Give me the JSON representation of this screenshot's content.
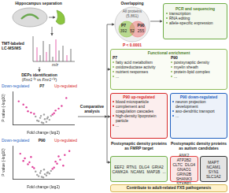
{
  "left": {
    "sample": "Hippocampus separation",
    "method": [
      "TMT-labeled",
      "LC-MS/MS"
    ],
    "spectrum_axis": "m/z",
    "analysis": "DEPs identification",
    "comparison": [
      {
        "text": "(",
        "style": "plain"
      },
      {
        "text": "Fmr1",
        "style": "italic"
      },
      {
        "text": "-/y",
        "style": "sup"
      },
      {
        "text": " vs ",
        "style": "plain"
      },
      {
        "text": "Fmr1",
        "style": "italic"
      },
      {
        "text": "+/y",
        "style": "sup"
      },
      {
        "text": ")",
        "style": "plain"
      }
    ]
  },
  "chart_data": [
    {
      "type": "scatter",
      "title": "P7",
      "annotations": [
        "Down-regulated",
        "Up-regulated"
      ],
      "x_label": "Fold change (log2)",
      "y_label": "P value (-log10)",
      "xlim": [
        -2,
        2
      ],
      "ylim": [
        0,
        5
      ],
      "tick_labels": false,
      "grid": false,
      "series": [
        {
          "color": "#a0a0a0",
          "x": [
            -0.3,
            -0.2,
            -0.1,
            0,
            0.1,
            0.2,
            0.3,
            -0.4,
            0.4,
            0.05,
            -0.15,
            0.25,
            -0.5,
            0.5
          ],
          "values": [
            0.5,
            1,
            0.3,
            0.2,
            0.8,
            0.4,
            1.1,
            0.6,
            0.7,
            1.5,
            1.3,
            0.9,
            1.2,
            1.3
          ]
        },
        {
          "color": "#e0409a",
          "x": [
            -1,
            -1.3,
            -0.8,
            -1.6,
            -0.6,
            -1.1,
            0.8,
            1.2,
            0.7,
            1.5,
            1.0,
            0.6
          ],
          "values": [
            2,
            3,
            1.8,
            3.5,
            1.6,
            2.6,
            2.1,
            2.8,
            1.7,
            4,
            2.4,
            1.5
          ]
        }
      ]
    },
    {
      "type": "scatter",
      "title": "P90",
      "annotations": [
        "Down-regulated",
        "Up-regulated"
      ],
      "x_label": "Fold change (log2)",
      "y_label": "P value (-log10)",
      "xlim": [
        -2,
        2
      ],
      "ylim": [
        0,
        5
      ],
      "tick_labels": false,
      "grid": false,
      "series": [
        {
          "color": "#a0a0a0",
          "x": [
            -0.3,
            -0.2,
            -0.1,
            0,
            0.1,
            0.2,
            0.3,
            -0.4,
            0.4,
            0.05,
            -0.15,
            0.25,
            -0.5,
            0.5
          ],
          "values": [
            0.4,
            0.9,
            0.3,
            0.2,
            0.7,
            0.5,
            1.0,
            0.6,
            0.8,
            1.4,
            1.2,
            0.9,
            1.1,
            1.2
          ]
        },
        {
          "color": "#e0409a",
          "x": [
            -0.7,
            -0.9,
            -1.2,
            -1.5,
            -0.6,
            -1.0,
            -1.3,
            -0.8,
            0.7,
            0.9,
            1.1,
            1.4,
            0.6,
            1.0,
            1.3,
            0.8,
            1.7
          ],
          "values": [
            1.8,
            2.5,
            3.1,
            3.8,
            1.6,
            2.2,
            2.7,
            3.3,
            1.7,
            2.3,
            2.9,
            3.6,
            1.5,
            3.4,
            2.0,
            2.6,
            4.2
          ]
        }
      ]
    }
  ],
  "link": "Comparative analysis",
  "overlap": {
    "title": "Overlapping",
    "universe": "All proteins (5,861)",
    "sets": [
      {
        "name": "P7",
        "color": "#8cc63f",
        "count": 392
      },
      {
        "name": "P90",
        "color": "#f08080",
        "count": 255
      }
    ],
    "shared": 52,
    "p_value": "P < 0.0001"
  },
  "validation": {
    "title": "PCR and sequencing",
    "items": [
      "transcription",
      "RNA editing",
      "allele-specific expression"
    ]
  },
  "enrichment": {
    "title": "Functional enrichment",
    "groups": [
      {
        "name": "P7",
        "items": [
          "fatty acid metabolism",
          "oxidoreductase activity",
          "nutrient responses",
          "..."
        ]
      },
      {
        "name": "P90",
        "items": [
          "postsynaptic density",
          "myelin sheath",
          "protein-lipid complex",
          "..."
        ]
      }
    ]
  },
  "regulation": [
    {
      "title": "P90 up-regulated",
      "color": "#d62728",
      "items": [
        "blood microparticle",
        "complement and coagulation cascades",
        "high-density lipoprotein particle",
        "..."
      ]
    },
    {
      "title": "P90 down-regulated",
      "color": "#1f5fbf",
      "items": [
        "neuron projection development",
        "axo-dendritic transport",
        "..."
      ]
    }
  ],
  "targets": [
    {
      "title": "Postsynaptic density proteins as FMRP target",
      "groups": [
        {
          "color": "#70ad47",
          "genes": [
            "EEF2",
            "RTN1",
            "DLG4",
            "GRIA2",
            "CAMK2A",
            "NCAM1",
            "MAP1B",
            "..."
          ]
        }
      ]
    },
    {
      "title": "Postsynaptic density proteins as autism candidates",
      "groups": [
        {
          "color": "#e04040",
          "genes": [
            "ANK2",
            "ATP2B2",
            "CLTC",
            "DLG4",
            "GNAO1",
            "GRIN2B",
            "SHANK3",
            "STXBP1"
          ]
        },
        {
          "color": "#333333",
          "genes": [
            "MAPT",
            "NCAM1",
            "SYN1",
            "SLC1A2"
          ]
        }
      ]
    }
  ],
  "conclusion": "Contribute to adult-related FXS pathogenesis"
}
